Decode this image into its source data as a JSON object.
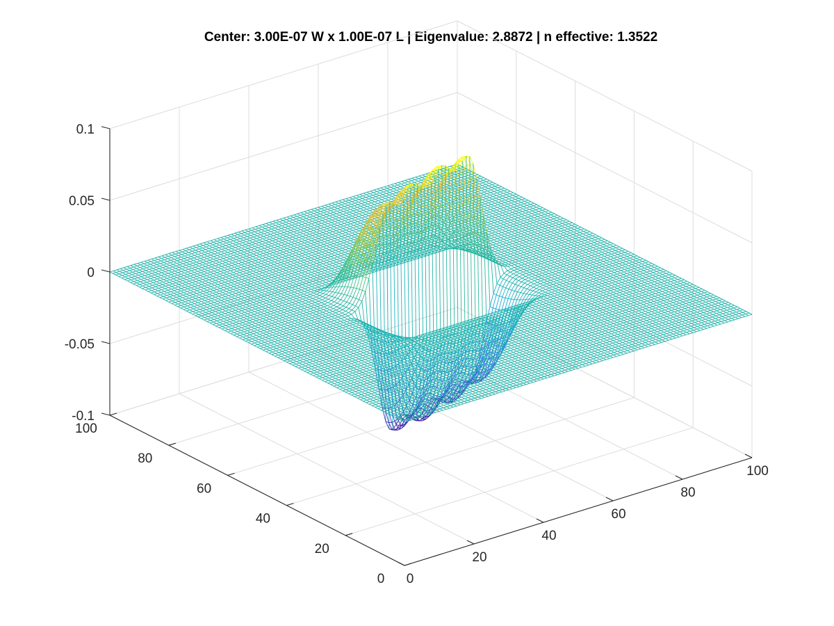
{
  "chart_data": {
    "type": "mesh3d",
    "title": "Center: 3.00E-07 W x 1.00E-07 L | Eigenvalue: 2.8872 | n effective: 1.3522",
    "xlabel": "",
    "ylabel": "",
    "zlabel": "",
    "x_ticks": [
      "0",
      "20",
      "40",
      "60",
      "80",
      "100"
    ],
    "y_ticks": [
      "0",
      "20",
      "40",
      "60",
      "80",
      "100"
    ],
    "z_ticks": [
      "-0.1",
      "-0.05",
      "0",
      "0.05",
      "0.1"
    ],
    "xlim": [
      0,
      100
    ],
    "ylim": [
      0,
      100
    ],
    "zlim": [
      -0.1,
      0.1
    ],
    "grid": true,
    "colormap": "parula",
    "colors": {
      "baseline": "#20b2aa",
      "low": "#3e26a8",
      "high": "#f9fb0e"
    },
    "mode": {
      "lobes": 4,
      "lobe_x_centers": [
        38,
        46,
        54,
        62
      ],
      "lobe_y_range": [
        34,
        66
      ],
      "peak_amplitude": 0.08,
      "trough_amplitude": -0.08,
      "peak_values": [
        0.065,
        0.07,
        0.076,
        0.081
      ]
    }
  }
}
